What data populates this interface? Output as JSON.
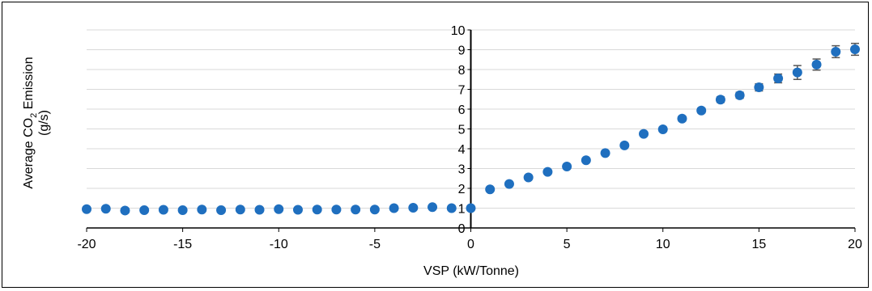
{
  "chart_data": {
    "type": "scatter",
    "title": "",
    "xlabel": "VSP (kW/Tonne)",
    "ylabel_line1_prefix": "Average CO",
    "ylabel_line1_subscript": "2",
    "ylabel_line1_suffix": " Emission",
    "ylabel_line2": "(g/s)",
    "xlim": [
      -20,
      20
    ],
    "ylim": [
      0,
      10
    ],
    "x_ticks": [
      -20,
      -15,
      -10,
      -5,
      0,
      5,
      10,
      15,
      20
    ],
    "y_ticks": [
      0,
      1,
      2,
      3,
      4,
      5,
      6,
      7,
      8,
      9,
      10
    ],
    "grid": "horizontal",
    "colors": {
      "marker": "#1f6fbf",
      "errorbar": "#555555",
      "grid": "#d9d9d9",
      "axis": "#000000"
    },
    "points": [
      {
        "x": -20,
        "y": 0.95,
        "err": 0.05
      },
      {
        "x": -19,
        "y": 0.97,
        "err": 0.05
      },
      {
        "x": -18,
        "y": 0.88,
        "err": 0.05
      },
      {
        "x": -17,
        "y": 0.9,
        "err": 0.05
      },
      {
        "x": -16,
        "y": 0.92,
        "err": 0.05
      },
      {
        "x": -15,
        "y": 0.9,
        "err": 0.05
      },
      {
        "x": -14,
        "y": 0.93,
        "err": 0.05
      },
      {
        "x": -13,
        "y": 0.9,
        "err": 0.05
      },
      {
        "x": -12,
        "y": 0.93,
        "err": 0.05
      },
      {
        "x": -11,
        "y": 0.92,
        "err": 0.05
      },
      {
        "x": -10,
        "y": 0.95,
        "err": 0.05
      },
      {
        "x": -9,
        "y": 0.92,
        "err": 0.05
      },
      {
        "x": -8,
        "y": 0.93,
        "err": 0.05
      },
      {
        "x": -7,
        "y": 0.93,
        "err": 0.05
      },
      {
        "x": -6,
        "y": 0.93,
        "err": 0.05
      },
      {
        "x": -5,
        "y": 0.93,
        "err": 0.05
      },
      {
        "x": -4,
        "y": 1.0,
        "err": 0.05
      },
      {
        "x": -3,
        "y": 1.02,
        "err": 0.05
      },
      {
        "x": -2,
        "y": 1.05,
        "err": 0.05
      },
      {
        "x": -1,
        "y": 1.0,
        "err": 0.05
      },
      {
        "x": 0,
        "y": 1.0,
        "err": 0.05
      },
      {
        "x": 1,
        "y": 1.95,
        "err": 0.06
      },
      {
        "x": 2,
        "y": 2.22,
        "err": 0.06
      },
      {
        "x": 3,
        "y": 2.55,
        "err": 0.06
      },
      {
        "x": 4,
        "y": 2.83,
        "err": 0.07
      },
      {
        "x": 5,
        "y": 3.1,
        "err": 0.07
      },
      {
        "x": 6,
        "y": 3.42,
        "err": 0.08
      },
      {
        "x": 7,
        "y": 3.78,
        "err": 0.08
      },
      {
        "x": 8,
        "y": 4.17,
        "err": 0.09
      },
      {
        "x": 9,
        "y": 4.75,
        "err": 0.1
      },
      {
        "x": 10,
        "y": 4.98,
        "err": 0.1
      },
      {
        "x": 11,
        "y": 5.52,
        "err": 0.12
      },
      {
        "x": 12,
        "y": 5.93,
        "err": 0.12
      },
      {
        "x": 13,
        "y": 6.48,
        "err": 0.14
      },
      {
        "x": 14,
        "y": 6.7,
        "err": 0.15
      },
      {
        "x": 15,
        "y": 7.1,
        "err": 0.18
      },
      {
        "x": 16,
        "y": 7.55,
        "err": 0.22
      },
      {
        "x": 17,
        "y": 7.85,
        "err": 0.35
      },
      {
        "x": 18,
        "y": 8.25,
        "err": 0.28
      },
      {
        "x": 19,
        "y": 8.9,
        "err": 0.3
      },
      {
        "x": 20,
        "y": 9.02,
        "err": 0.3
      }
    ]
  }
}
